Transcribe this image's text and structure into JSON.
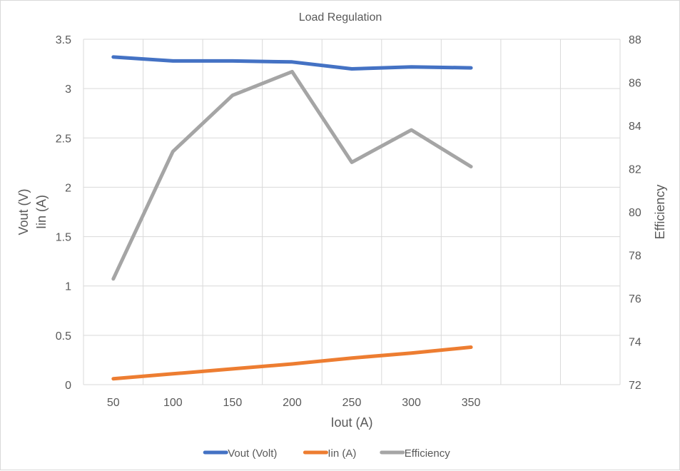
{
  "chart_data": {
    "type": "line",
    "title": "Load Regulation",
    "xlabel": "Iout (A)",
    "ylabel_left": [
      "Vout (V)",
      "Iin (A)"
    ],
    "ylabel_right": "Efficiency",
    "categories": [
      "50",
      "100",
      "150",
      "200",
      "250",
      "300",
      "350"
    ],
    "x_extra_gridlines": 2,
    "y_left": {
      "min": 0,
      "max": 3.5,
      "ticks": [
        "0",
        "0.5",
        "1",
        "1.5",
        "2",
        "2.5",
        "3",
        "3.5"
      ]
    },
    "y_right": {
      "min": 72,
      "max": 88,
      "ticks": [
        "72",
        "74",
        "76",
        "78",
        "80",
        "82",
        "84",
        "86",
        "88"
      ]
    },
    "grid": true,
    "legend_position": "bottom",
    "series": [
      {
        "name": "Vout (Volt)",
        "axis": "left",
        "color": "#4472C4",
        "values": [
          3.32,
          3.28,
          3.28,
          3.27,
          3.2,
          3.22,
          3.21
        ]
      },
      {
        "name": "Iin (A)",
        "axis": "left",
        "color": "#ED7D31",
        "values": [
          0.06,
          0.11,
          0.16,
          0.21,
          0.27,
          0.32,
          0.38
        ]
      },
      {
        "name": "Efficiency",
        "axis": "right",
        "color": "#A5A5A5",
        "values": [
          76.9,
          82.8,
          85.4,
          86.5,
          82.3,
          83.8,
          82.1
        ]
      }
    ]
  }
}
